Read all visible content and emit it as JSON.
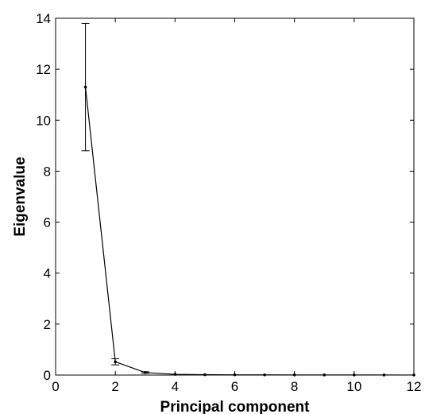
{
  "chart_data": {
    "type": "line",
    "title": "",
    "xlabel": "Principal component",
    "ylabel": "Eigenvalue",
    "xlim": [
      0,
      12
    ],
    "ylim": [
      0,
      14
    ],
    "xticks": [
      0,
      2,
      4,
      6,
      8,
      10,
      12
    ],
    "yticks": [
      0,
      2,
      4,
      6,
      8,
      10,
      12,
      14
    ],
    "grid": false,
    "series": [
      {
        "x": [
          1,
          2,
          3,
          4,
          5,
          6,
          7,
          8,
          9,
          10,
          11,
          12
        ],
        "y": [
          11.3,
          0.52,
          0.1,
          0.03,
          0.015,
          0.01,
          0.008,
          0.006,
          0.005,
          0.004,
          0.003,
          0.002
        ],
        "error": [
          2.5,
          0.12,
          0.03,
          0,
          0,
          0,
          0,
          0,
          0,
          0,
          0,
          0
        ],
        "color": "#000000",
        "marker": "dot"
      }
    ]
  }
}
